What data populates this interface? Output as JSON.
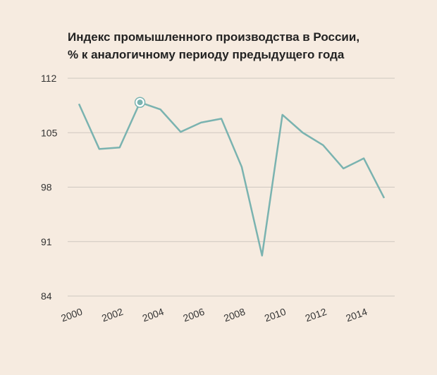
{
  "chart_data": {
    "type": "line",
    "title_line1": "Индекс промышленного производства в России,",
    "title_line2": "% к аналогичному периоду предыдущего года",
    "xlabel": "",
    "ylabel": "",
    "x": [
      2000,
      2001,
      2002,
      2003,
      2004,
      2005,
      2006,
      2007,
      2008,
      2009,
      2010,
      2011,
      2012,
      2013,
      2014,
      2015
    ],
    "series": [
      {
        "values": [
          108.7,
          102.9,
          103.1,
          108.9,
          108.0,
          105.1,
          106.3,
          106.8,
          100.6,
          89.2,
          107.3,
          105.0,
          103.4,
          100.4,
          101.7,
          96.6
        ]
      }
    ],
    "highlight_index": 3,
    "ylim": [
      84,
      112
    ],
    "yticks": [
      84,
      91,
      98,
      105,
      112
    ],
    "xticks": [
      "2000",
      "2002",
      "2004",
      "2006",
      "2008",
      "2010",
      "2012",
      "2014"
    ],
    "grid": true,
    "colors": {
      "line": "#7ab3b0",
      "grid": "#cfc8c0",
      "marker_fill": "#7ab3b0",
      "marker_ring": "#ffffff"
    }
  }
}
